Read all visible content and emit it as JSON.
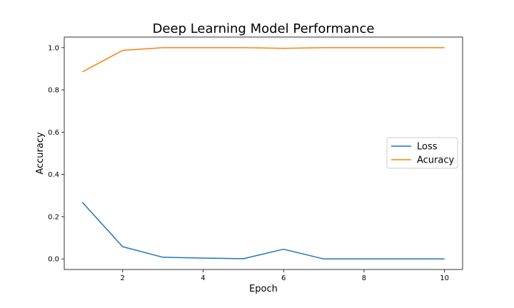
{
  "chart_data": {
    "type": "line",
    "title": "Deep Learning Model Performance",
    "xlabel": "Epoch",
    "ylabel": "Accuracy",
    "x": [
      1,
      2,
      3,
      4,
      5,
      6,
      7,
      8,
      9,
      10
    ],
    "xlim": [
      0.55,
      10.45
    ],
    "ylim": [
      -0.05,
      1.05
    ],
    "xticks": [
      2,
      4,
      6,
      8,
      10
    ],
    "yticks": [
      0.0,
      0.2,
      0.4,
      0.6,
      0.8,
      1.0
    ],
    "xtick_labels": [
      "2",
      "4",
      "6",
      "8",
      "10"
    ],
    "ytick_labels": [
      "0.0",
      "0.2",
      "0.4",
      "0.6",
      "0.8",
      "1.0"
    ],
    "grid": false,
    "legend_position": "center-right",
    "series": [
      {
        "name": "Loss",
        "color": "#1f77b4",
        "values": [
          0.268,
          0.058,
          0.008,
          0.004,
          0.001,
          0.046,
          0.0,
          0.0,
          0.0,
          0.0
        ]
      },
      {
        "name": "Acuracy",
        "color": "#ff7f0e",
        "values": [
          0.885,
          0.987,
          1.0,
          1.0,
          1.0,
          0.997,
          1.0,
          1.0,
          1.0,
          1.0
        ]
      }
    ]
  }
}
